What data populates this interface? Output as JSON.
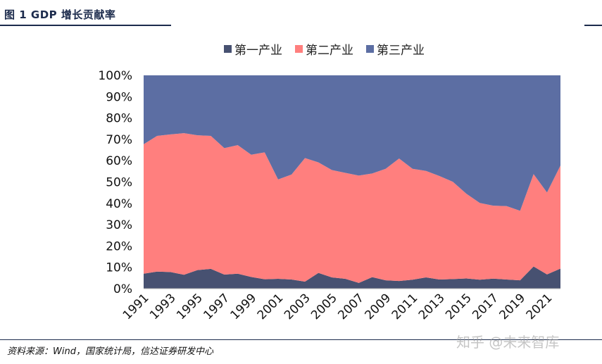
{
  "header": {
    "figure_title": "图 1   GDP 增长贡献率"
  },
  "footer": {
    "source": "资料来源：Wind，国家统计局，信达证券研发中心",
    "watermark": "知乎 @未来智库"
  },
  "colors": {
    "primary": "#475171",
    "secondary": "#ff7f7e",
    "tertiary": "#5c6ea3",
    "accent_line": "#1c2b4c"
  },
  "chart_data": {
    "type": "area",
    "stacked": true,
    "title": "",
    "xlabel": "",
    "ylabel": "",
    "ylim": [
      0,
      100
    ],
    "y_ticks": [
      "0%",
      "10%",
      "20%",
      "30%",
      "40%",
      "50%",
      "60%",
      "70%",
      "80%",
      "90%",
      "100%"
    ],
    "x_tick_labels": [
      "1991",
      "1993",
      "1995",
      "1997",
      "1999",
      "2001",
      "2003",
      "2005",
      "2007",
      "2009",
      "2011",
      "2013",
      "2015",
      "2017",
      "2019",
      "2021"
    ],
    "legend_position": "top-center",
    "x": [
      1991,
      1992,
      1993,
      1994,
      1995,
      1996,
      1997,
      1998,
      1999,
      2000,
      2001,
      2002,
      2003,
      2004,
      2005,
      2006,
      2007,
      2008,
      2009,
      2010,
      2011,
      2012,
      2013,
      2014,
      2015,
      2016,
      2017,
      2018,
      2019,
      2020,
      2021,
      2022
    ],
    "series": [
      {
        "name": "第一产业",
        "color": "#475171",
        "values": [
          7.0,
          8.0,
          7.8,
          6.5,
          8.7,
          9.3,
          6.6,
          7.0,
          5.5,
          4.4,
          4.6,
          4.3,
          3.3,
          7.4,
          5.3,
          4.6,
          2.7,
          5.4,
          3.9,
          3.6,
          4.2,
          5.3,
          4.3,
          4.5,
          4.8,
          4.2,
          4.7,
          4.3,
          3.9,
          10.4,
          6.7,
          9.4
        ]
      },
      {
        "name": "第二产业",
        "color": "#ff7f7e",
        "values": [
          60.7,
          63.6,
          64.5,
          66.4,
          63.2,
          62.3,
          59.3,
          60.3,
          57.3,
          59.5,
          46.6,
          49.2,
          57.9,
          51.8,
          50.3,
          49.7,
          50.3,
          48.6,
          52.3,
          57.4,
          52.0,
          49.9,
          48.5,
          45.6,
          39.7,
          36.0,
          34.2,
          34.4,
          32.6,
          43.3,
          38.4,
          48.3
        ]
      },
      {
        "name": "第三产业",
        "color": "#5c6ea3",
        "values": [
          32.3,
          28.4,
          27.7,
          27.1,
          28.1,
          28.4,
          34.1,
          32.7,
          37.2,
          36.1,
          48.8,
          46.5,
          38.8,
          40.8,
          44.4,
          45.7,
          47.0,
          46.0,
          43.8,
          39.0,
          43.8,
          44.8,
          47.2,
          49.9,
          55.5,
          59.8,
          61.1,
          61.3,
          63.5,
          46.3,
          54.9,
          42.3
        ]
      }
    ]
  }
}
